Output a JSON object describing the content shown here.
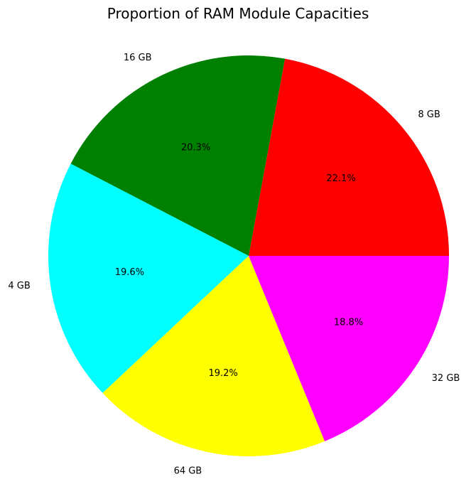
{
  "chart_data": {
    "type": "pie",
    "title": "Proportion of RAM Module Capacities",
    "start_angle_deg": 0,
    "direction": "counterclockwise",
    "slices": [
      {
        "label": "8 GB",
        "value": 22.1,
        "pct_label": "22.1%",
        "color": "#ff0000"
      },
      {
        "label": "16 GB",
        "value": 20.3,
        "pct_label": "20.3%",
        "color": "#008000"
      },
      {
        "label": "4 GB",
        "value": 19.6,
        "pct_label": "19.6%",
        "color": "#00ffff"
      },
      {
        "label": "64 GB",
        "value": 19.2,
        "pct_label": "19.2%",
        "color": "#ffff00"
      },
      {
        "label": "32 GB",
        "value": 18.8,
        "pct_label": "18.8%",
        "color": "#ff00ff"
      }
    ]
  }
}
